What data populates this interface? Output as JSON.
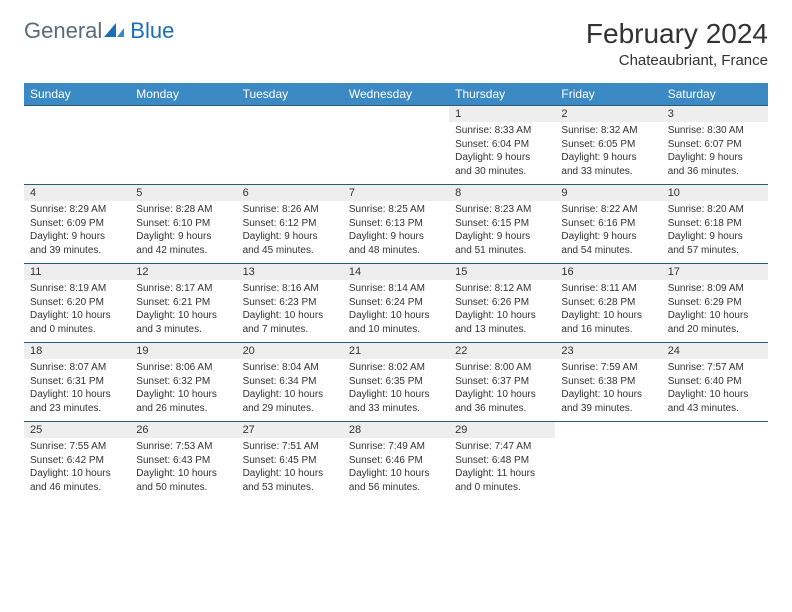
{
  "logo": {
    "general": "General",
    "blue": "Blue"
  },
  "title": "February 2024",
  "location": "Chateaubriant, France",
  "colors": {
    "header_bg": "#3b8ac4",
    "daynum_bg": "#eeeeee",
    "border": "#285a7a",
    "text": "#333333"
  },
  "day_headers": [
    "Sunday",
    "Monday",
    "Tuesday",
    "Wednesday",
    "Thursday",
    "Friday",
    "Saturday"
  ],
  "weeks": [
    [
      null,
      null,
      null,
      null,
      {
        "n": "1",
        "sr": "8:33 AM",
        "ss": "6:04 PM",
        "dh": "9",
        "dm": "30"
      },
      {
        "n": "2",
        "sr": "8:32 AM",
        "ss": "6:05 PM",
        "dh": "9",
        "dm": "33"
      },
      {
        "n": "3",
        "sr": "8:30 AM",
        "ss": "6:07 PM",
        "dh": "9",
        "dm": "36"
      }
    ],
    [
      {
        "n": "4",
        "sr": "8:29 AM",
        "ss": "6:09 PM",
        "dh": "9",
        "dm": "39"
      },
      {
        "n": "5",
        "sr": "8:28 AM",
        "ss": "6:10 PM",
        "dh": "9",
        "dm": "42"
      },
      {
        "n": "6",
        "sr": "8:26 AM",
        "ss": "6:12 PM",
        "dh": "9",
        "dm": "45"
      },
      {
        "n": "7",
        "sr": "8:25 AM",
        "ss": "6:13 PM",
        "dh": "9",
        "dm": "48"
      },
      {
        "n": "8",
        "sr": "8:23 AM",
        "ss": "6:15 PM",
        "dh": "9",
        "dm": "51"
      },
      {
        "n": "9",
        "sr": "8:22 AM",
        "ss": "6:16 PM",
        "dh": "9",
        "dm": "54"
      },
      {
        "n": "10",
        "sr": "8:20 AM",
        "ss": "6:18 PM",
        "dh": "9",
        "dm": "57"
      }
    ],
    [
      {
        "n": "11",
        "sr": "8:19 AM",
        "ss": "6:20 PM",
        "dh": "10",
        "dm": "0"
      },
      {
        "n": "12",
        "sr": "8:17 AM",
        "ss": "6:21 PM",
        "dh": "10",
        "dm": "3"
      },
      {
        "n": "13",
        "sr": "8:16 AM",
        "ss": "6:23 PM",
        "dh": "10",
        "dm": "7"
      },
      {
        "n": "14",
        "sr": "8:14 AM",
        "ss": "6:24 PM",
        "dh": "10",
        "dm": "10"
      },
      {
        "n": "15",
        "sr": "8:12 AM",
        "ss": "6:26 PM",
        "dh": "10",
        "dm": "13"
      },
      {
        "n": "16",
        "sr": "8:11 AM",
        "ss": "6:28 PM",
        "dh": "10",
        "dm": "16"
      },
      {
        "n": "17",
        "sr": "8:09 AM",
        "ss": "6:29 PM",
        "dh": "10",
        "dm": "20"
      }
    ],
    [
      {
        "n": "18",
        "sr": "8:07 AM",
        "ss": "6:31 PM",
        "dh": "10",
        "dm": "23"
      },
      {
        "n": "19",
        "sr": "8:06 AM",
        "ss": "6:32 PM",
        "dh": "10",
        "dm": "26"
      },
      {
        "n": "20",
        "sr": "8:04 AM",
        "ss": "6:34 PM",
        "dh": "10",
        "dm": "29"
      },
      {
        "n": "21",
        "sr": "8:02 AM",
        "ss": "6:35 PM",
        "dh": "10",
        "dm": "33"
      },
      {
        "n": "22",
        "sr": "8:00 AM",
        "ss": "6:37 PM",
        "dh": "10",
        "dm": "36"
      },
      {
        "n": "23",
        "sr": "7:59 AM",
        "ss": "6:38 PM",
        "dh": "10",
        "dm": "39"
      },
      {
        "n": "24",
        "sr": "7:57 AM",
        "ss": "6:40 PM",
        "dh": "10",
        "dm": "43"
      }
    ],
    [
      {
        "n": "25",
        "sr": "7:55 AM",
        "ss": "6:42 PM",
        "dh": "10",
        "dm": "46"
      },
      {
        "n": "26",
        "sr": "7:53 AM",
        "ss": "6:43 PM",
        "dh": "10",
        "dm": "50"
      },
      {
        "n": "27",
        "sr": "7:51 AM",
        "ss": "6:45 PM",
        "dh": "10",
        "dm": "53"
      },
      {
        "n": "28",
        "sr": "7:49 AM",
        "ss": "6:46 PM",
        "dh": "10",
        "dm": "56"
      },
      {
        "n": "29",
        "sr": "7:47 AM",
        "ss": "6:48 PM",
        "dh": "11",
        "dm": "0"
      },
      null,
      null
    ]
  ],
  "labels": {
    "sunrise": "Sunrise:",
    "sunset": "Sunset:",
    "daylight": "Daylight:",
    "hours": "hours",
    "and": "and",
    "minutes": "minutes."
  }
}
